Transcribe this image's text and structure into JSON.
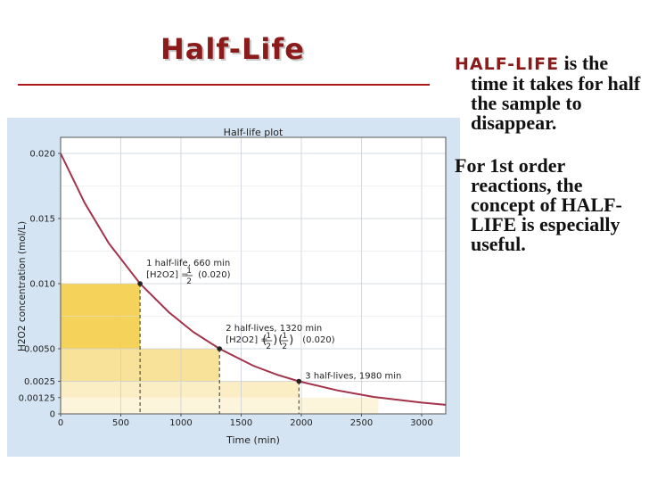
{
  "slide": {
    "title": "Half-Life",
    "bullets": [
      {
        "key": "HALF-LIFE",
        "text": " is the time it takes for half the sample to disappear."
      },
      {
        "key": "",
        "text": "For 1st order reactions, the concept of HALF-LIFE is especially useful."
      }
    ]
  },
  "colors": {
    "title": "#8b1a1a",
    "rule": "#b01919",
    "panel_bg": "#d4e4f2",
    "curve": "#a3324a",
    "band1": "#f5d35a",
    "band2": "#f8e29a",
    "band3": "#fbedc4",
    "band4": "#fdf4dc"
  },
  "chart_data": {
    "type": "line",
    "title": "Half-life plot",
    "xlabel": "Time (min)",
    "ylabel": "H2O2 concentration (mol/L)",
    "xlim": [
      0,
      3200
    ],
    "ylim": [
      0,
      0.021
    ],
    "x_ticks": [
      "0",
      "500",
      "1000",
      "1500",
      "2000",
      "2500",
      "3000"
    ],
    "x_tick_values": [
      0,
      500,
      1000,
      1500,
      2000,
      2500,
      3000
    ],
    "y_ticks": [
      "0",
      "0.00125",
      "0.0025",
      "0.0050",
      "0.010",
      "0.015",
      "0.020"
    ],
    "y_tick_values": [
      0,
      0.00125,
      0.0025,
      0.005,
      0.01,
      0.015,
      0.02
    ],
    "grid": true,
    "series": [
      {
        "initial_concentration": 0.02,
        "half_life_min": 660,
        "x": [
          0,
          200,
          400,
          660,
          900,
          1100,
          1320,
          1600,
          1800,
          1980,
          2300,
          2600,
          3000,
          3200
        ],
        "y": [
          0.02,
          0.0162,
          0.0131,
          0.01,
          0.0078,
          0.0063,
          0.005,
          0.0037,
          0.003,
          0.0025,
          0.0018,
          0.0013,
          0.00086,
          0.00069
        ]
      }
    ],
    "points": [
      {
        "x": 660,
        "y": 0.01
      },
      {
        "x": 1320,
        "y": 0.005
      },
      {
        "x": 1980,
        "y": 0.0025
      }
    ],
    "bands": [
      {
        "x0": 0,
        "x1": 660,
        "y0": 0.005,
        "y1": 0.01,
        "shade": "band1"
      },
      {
        "x0": 0,
        "x1": 1320,
        "y0": 0.0025,
        "y1": 0.005,
        "shade": "band2"
      },
      {
        "x0": 0,
        "x1": 1980,
        "y0": 0.00125,
        "y1": 0.0025,
        "shade": "band3"
      },
      {
        "x0": 0,
        "x1": 2640,
        "y0": 0,
        "y1": 0.00125,
        "shade": "band4"
      }
    ],
    "annotations": [
      {
        "x": 660,
        "y": 0.01,
        "line1": "1 half-life, 660 min",
        "lhs": "[H2O2] =",
        "fractions": [
          {
            "num": "1",
            "den": "2"
          }
        ],
        "tail": "(0.020)"
      },
      {
        "x": 1320,
        "y": 0.005,
        "line1": "2 half-lives, 1320 min",
        "lhs": "[H2O2] =",
        "fractions": [
          {
            "num": "1",
            "den": "2"
          },
          {
            "num": "1",
            "den": "2"
          }
        ],
        "tail": "(0.020)"
      },
      {
        "x": 1980,
        "y": 0.0025,
        "line1": "3 half-lives, 1980 min",
        "lhs": "",
        "fractions": [],
        "tail": ""
      }
    ]
  }
}
